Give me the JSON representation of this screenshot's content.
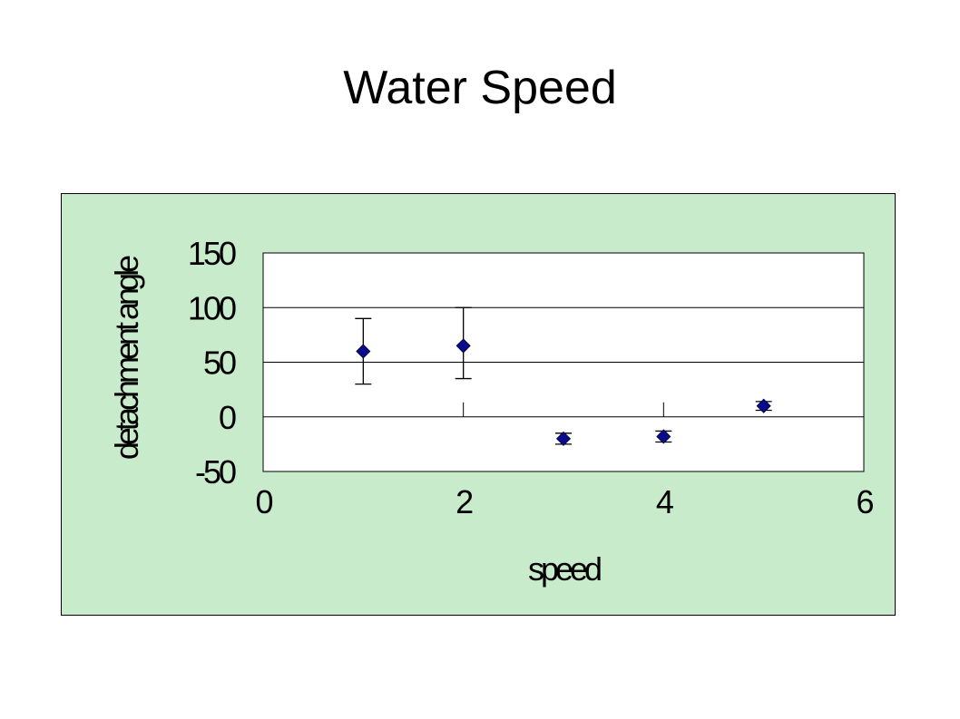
{
  "slide": {
    "title": "Water Speed"
  },
  "colors": {
    "chart_background": "#c8ebcc",
    "plot_background": "#ffffff",
    "marker_fill": "#0a0a8c",
    "axis_line": "#000000"
  },
  "chart_data": {
    "type": "scatter",
    "title": "",
    "xlabel": "speed",
    "ylabel": "detachment angle",
    "xlim": [
      0,
      6
    ],
    "ylim": [
      -50,
      150
    ],
    "xticks": [
      "0",
      "2",
      "4",
      "6"
    ],
    "yticks": [
      "150",
      "100",
      "50",
      "0",
      "-50"
    ],
    "grid": "horizontal",
    "legend": "none",
    "marker": "diamond",
    "series": [
      {
        "x": [
          1,
          2,
          3,
          4,
          5
        ],
        "y": [
          60,
          65,
          -20,
          -18,
          10
        ],
        "error_low": [
          30,
          30,
          5,
          5,
          4
        ],
        "error_high": [
          30,
          35,
          5,
          5,
          4
        ]
      }
    ]
  }
}
